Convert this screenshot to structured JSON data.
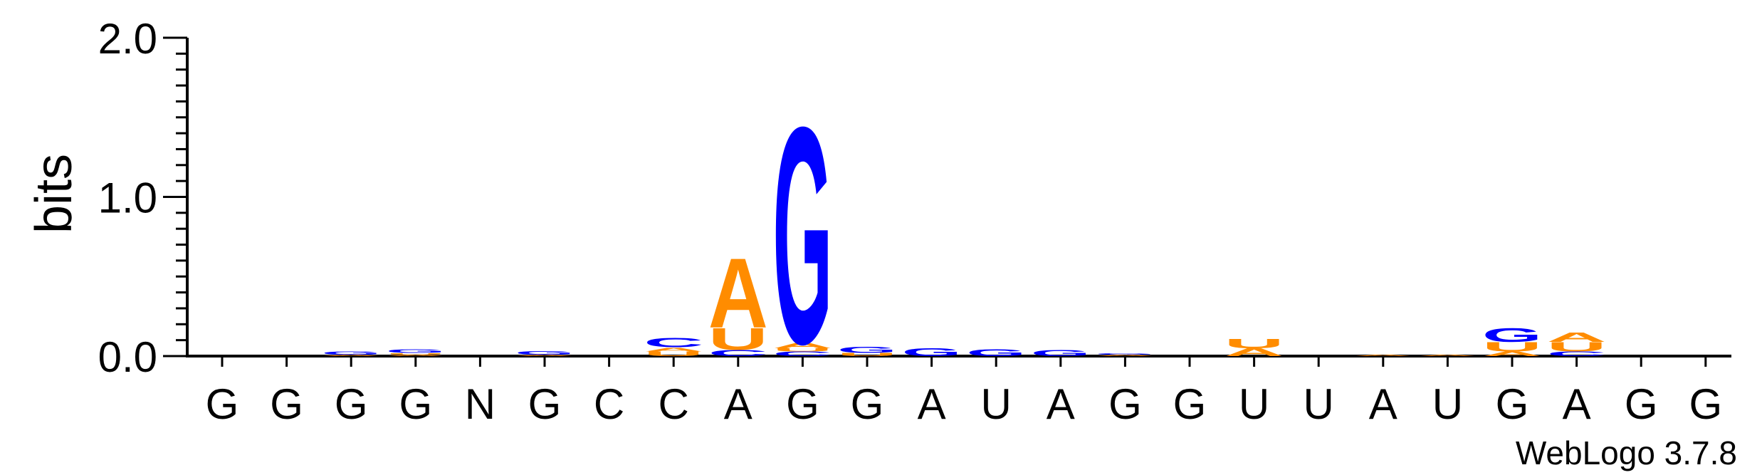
{
  "chart_data": {
    "type": "sequence-logo",
    "ylabel": "bits",
    "ylim": [
      0,
      2.0
    ],
    "yticks": [
      {
        "value": 0.0,
        "label": "0.0"
      },
      {
        "value": 1.0,
        "label": "1.0"
      },
      {
        "value": 2.0,
        "label": "2.0"
      }
    ],
    "consensus": [
      "G",
      "G",
      "G",
      "G",
      "N",
      "G",
      "C",
      "C",
      "A",
      "G",
      "G",
      "A",
      "U",
      "A",
      "G",
      "G",
      "U",
      "U",
      "A",
      "U",
      "G",
      "A",
      "G",
      "G"
    ],
    "colors": {
      "A": "#ff8c00",
      "U": "#ff8c00",
      "G": "#0000ff",
      "C": "#0000ff"
    },
    "positions": [
      [],
      [],
      [
        {
          "letter": "A",
          "bits": 0.01
        },
        {
          "letter": "G",
          "bits": 0.02
        }
      ],
      [
        {
          "letter": "A",
          "bits": 0.01
        },
        {
          "letter": "U",
          "bits": 0.01
        },
        {
          "letter": "G",
          "bits": 0.025
        }
      ],
      [],
      [
        {
          "letter": "A",
          "bits": 0.01
        },
        {
          "letter": "G",
          "bits": 0.025
        }
      ],
      [],
      [
        {
          "letter": "U",
          "bits": 0.03
        },
        {
          "letter": "A",
          "bits": 0.025
        },
        {
          "letter": "C",
          "bits": 0.06
        }
      ],
      [
        {
          "letter": "C",
          "bits": 0.04
        },
        {
          "letter": "U",
          "bits": 0.14
        },
        {
          "letter": "A",
          "bits": 0.45
        }
      ],
      [
        {
          "letter": "C",
          "bits": 0.03
        },
        {
          "letter": "U",
          "bits": 0.02
        },
        {
          "letter": "A",
          "bits": 0.035
        },
        {
          "letter": "G",
          "bits": 1.4
        }
      ],
      [
        {
          "letter": "U",
          "bits": 0.02
        },
        {
          "letter": "G",
          "bits": 0.04
        }
      ],
      [
        {
          "letter": "G",
          "bits": 0.05
        }
      ],
      [
        {
          "letter": "G",
          "bits": 0.045
        }
      ],
      [
        {
          "letter": "G",
          "bits": 0.04
        }
      ],
      [
        {
          "letter": "A",
          "bits": 0.01
        },
        {
          "letter": "G",
          "bits": 0.01
        }
      ],
      [],
      [
        {
          "letter": "A",
          "bits": 0.05
        },
        {
          "letter": "U",
          "bits": 0.06
        }
      ],
      [],
      [
        {
          "letter": "A",
          "bits": 0.01
        }
      ],
      [
        {
          "letter": "A",
          "bits": 0.01
        }
      ],
      [
        {
          "letter": "A",
          "bits": 0.03
        },
        {
          "letter": "U",
          "bits": 0.06
        },
        {
          "letter": "G",
          "bits": 0.09
        }
      ],
      [
        {
          "letter": "C",
          "bits": 0.03
        },
        {
          "letter": "U",
          "bits": 0.06
        },
        {
          "letter": "A",
          "bits": 0.06
        }
      ],
      [],
      []
    ]
  },
  "footer": "WebLogo 3.7.8"
}
